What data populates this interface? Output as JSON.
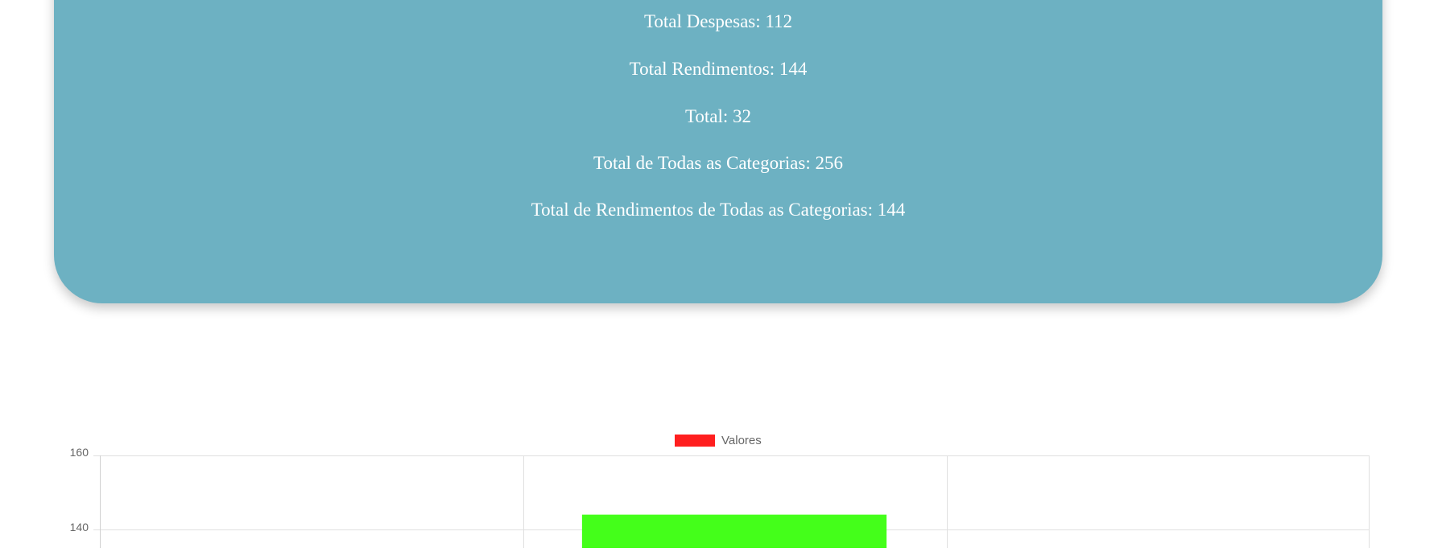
{
  "summary": {
    "lines": [
      "Total Despesas: 112",
      "Total Rendimentos: 144",
      "Total: 32",
      "Total de Todas as Categorias: 256",
      "Total de Rendimentos de Todas as Categorias: 144"
    ]
  },
  "chart_data": {
    "type": "bar",
    "legend": {
      "label": "Valores",
      "color": "#ff1f1f",
      "placement": "top-center"
    },
    "categories": [
      "",
      "",
      ""
    ],
    "series": [
      {
        "name": "Valores",
        "values": [
          null,
          144,
          null
        ],
        "colors": [
          "#ff1f1f",
          "#44ff1a",
          "#ff1f1f"
        ]
      }
    ],
    "y_ticks": [
      "160",
      "140"
    ],
    "ylim_visible": [
      135,
      160
    ],
    "grid": true
  }
}
